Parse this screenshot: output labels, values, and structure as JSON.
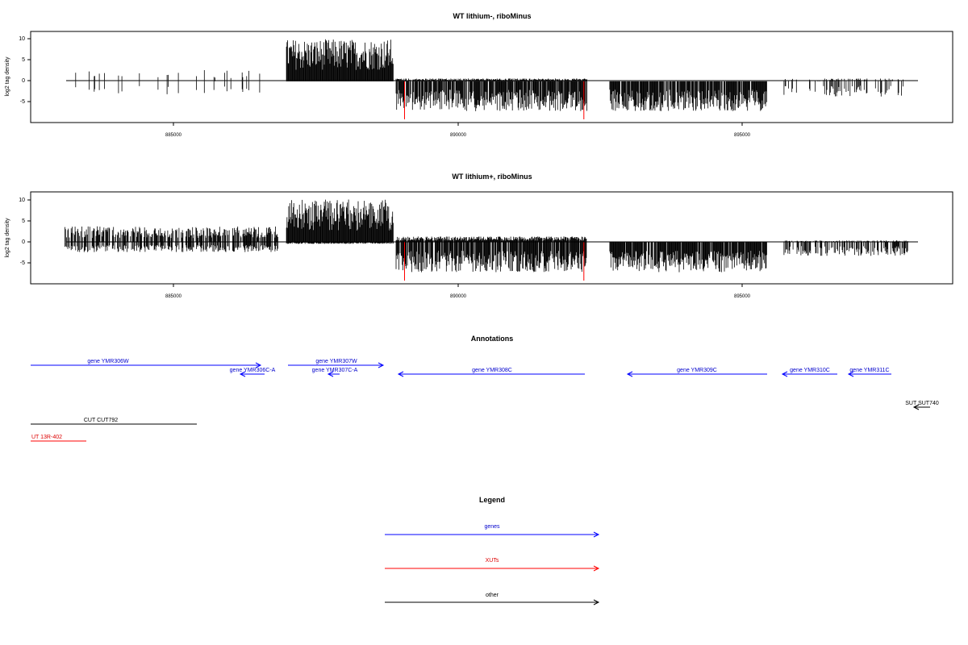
{
  "panels": [
    {
      "title": "WT lithium-, riboMinus",
      "ylabel": "log2 tag density",
      "yticks": [
        "10",
        "5",
        "0",
        "-5"
      ],
      "xticks": [
        "885000",
        "890000",
        "895000"
      ]
    },
    {
      "title": "WT lithium+, riboMinus",
      "ylabel": "log2 tag density",
      "yticks": [
        "10",
        "5",
        "0",
        "-5"
      ],
      "xticks": [
        "885000",
        "890000",
        "895000"
      ]
    }
  ],
  "annotations": {
    "title": "Annotations",
    "genes": [
      {
        "label": "gene YMR306W",
        "start": 882700,
        "end": 886700,
        "strand": "+"
      },
      {
        "label": "gene YMR306C-A",
        "start": 886100,
        "end": 886600,
        "strand": "-"
      },
      {
        "label": "gene YMR307W",
        "start": 886950,
        "end": 888800,
        "strand": "+"
      },
      {
        "label": "gene YMR307C-A",
        "start": 887500,
        "end": 887700,
        "strand": "-"
      },
      {
        "label": "gene YMR308C",
        "start": 889060,
        "end": 892240,
        "strand": "-"
      },
      {
        "label": "gene YMR309C",
        "start": 893050,
        "end": 895510,
        "strand": "-"
      },
      {
        "label": "gene YMR310C",
        "start": 895780,
        "end": 896700,
        "strand": "-"
      },
      {
        "label": "gene YMR311C",
        "start": 896900,
        "end": 897660,
        "strand": "-"
      }
    ],
    "xuts": [
      {
        "label": "UT 13R-402",
        "start": 882700,
        "end": 883660,
        "strand": "+"
      }
    ],
    "other": [
      {
        "label": "SUT SUT740",
        "start": 898050,
        "end": 898350,
        "strand": "-"
      },
      {
        "label": "CUT CUT792",
        "start": 882700,
        "end": 885580,
        "strand": "+"
      }
    ]
  },
  "legend": {
    "title": "Legend",
    "items": [
      {
        "label": "genes",
        "color": "#0000ff"
      },
      {
        "label": "XUTs",
        "color": "#ff0000"
      },
      {
        "label": "other",
        "color": "#000000"
      }
    ]
  },
  "chart_data": [
    {
      "type": "bar",
      "title": "WT lithium-, riboMinus",
      "ylabel": "log2 tag density",
      "xlim": [
        882400,
        898800
      ],
      "ylim": [
        -9.5,
        11.5
      ],
      "red_markers_x": [
        889050,
        892240
      ],
      "segments": [
        {
          "start": 883000,
          "end": 883500,
          "pos": 2.5,
          "neg": -2.0,
          "density": 0.15
        },
        {
          "start": 883500,
          "end": 886800,
          "pos": 2.0,
          "neg": -2.5,
          "density": 0.06
        },
        {
          "start": 886950,
          "end": 888850,
          "pos": 7.5,
          "neg": 0.0,
          "density": 1.0
        },
        {
          "start": 888900,
          "end": 892300,
          "pos": 0.5,
          "neg": -5.5,
          "density": 0.95
        },
        {
          "start": 892700,
          "end": 895500,
          "pos": 0.0,
          "neg": -5.5,
          "density": 1.0
        },
        {
          "start": 895800,
          "end": 898000,
          "pos": 0.5,
          "neg": -2.8,
          "density": 0.25
        }
      ]
    },
    {
      "type": "bar",
      "title": "WT lithium+, riboMinus",
      "ylabel": "log2 tag density",
      "xlim": [
        882400,
        898800
      ],
      "ylim": [
        -9.5,
        11.5
      ],
      "red_markers_x": [
        889050,
        892240
      ],
      "segments": [
        {
          "start": 883000,
          "end": 886800,
          "pos": 2.8,
          "neg": -1.8,
          "density": 0.7
        },
        {
          "start": 886950,
          "end": 888850,
          "pos": 7.5,
          "neg": -0.3,
          "density": 1.0
        },
        {
          "start": 888900,
          "end": 892300,
          "pos": 1.0,
          "neg": -5.5,
          "density": 0.95
        },
        {
          "start": 892700,
          "end": 895500,
          "pos": 0.0,
          "neg": -5.5,
          "density": 1.0
        },
        {
          "start": 895800,
          "end": 898000,
          "pos": 0.3,
          "neg": -2.5,
          "density": 0.6
        }
      ]
    }
  ]
}
